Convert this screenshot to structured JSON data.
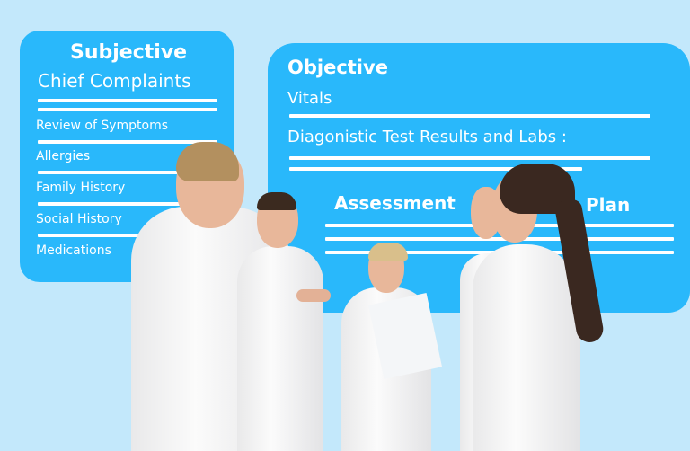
{
  "subjective": {
    "title": "Subjective",
    "subtitle": "Chief Complaints",
    "items": [
      "Review of Symptoms",
      "Allergies",
      "Family History",
      "Social History",
      "Medications"
    ]
  },
  "objective": {
    "title": "Objective",
    "vitals": "Vitals",
    "labs": "Diagonistic Test Results and Labs :",
    "assessment": "Assessment",
    "plan": "Plan"
  },
  "colors": {
    "background": "#c3e8fb",
    "card": "#29b8fb",
    "text": "#ffffff"
  }
}
